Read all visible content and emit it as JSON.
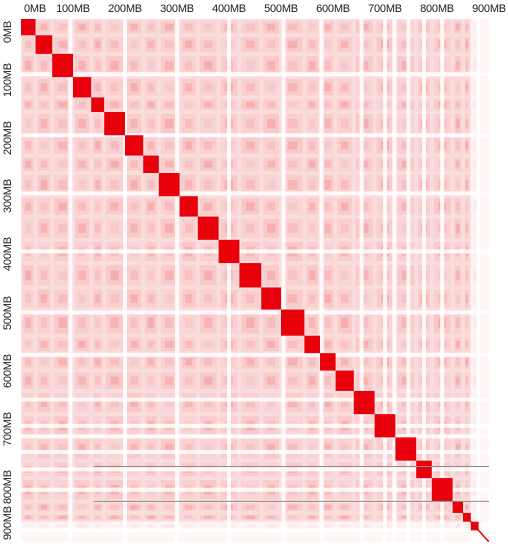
{
  "viewer": {
    "x_ticks": [
      "0MB",
      "100MB",
      "200MB",
      "300MB",
      "400MB",
      "500MB",
      "600MB",
      "700MB",
      "800MB",
      "900MB"
    ],
    "y_ticks": [
      "0MB",
      "100MB",
      "200MB",
      "300MB",
      "400MB",
      "500MB",
      "600MB",
      "700MB",
      "800MB",
      "900MB"
    ],
    "colors": {
      "background": "#ffffff",
      "base": "#fbdcdc",
      "contact": "#f4a6a6",
      "domain": "#e8000a",
      "gap": "#ffffff",
      "line": "#8c8c8c"
    }
  },
  "chart_data": {
    "type": "heatmap",
    "x_range_mb": [
      0,
      900
    ],
    "y_range_mb": [
      0,
      900
    ],
    "blocks_mb": [
      [
        0,
        28
      ],
      [
        28,
        60
      ],
      [
        60,
        100
      ],
      [
        100,
        135
      ],
      [
        135,
        160
      ],
      [
        160,
        200
      ],
      [
        200,
        235
      ],
      [
        235,
        265
      ],
      [
        265,
        305
      ],
      [
        305,
        340
      ],
      [
        340,
        380
      ],
      [
        380,
        420
      ],
      [
        420,
        462
      ],
      [
        462,
        500
      ],
      [
        500,
        545
      ],
      [
        545,
        575
      ],
      [
        575,
        605
      ],
      [
        605,
        640
      ],
      [
        640,
        680
      ],
      [
        680,
        720
      ],
      [
        720,
        760
      ],
      [
        760,
        790
      ],
      [
        790,
        830
      ],
      [
        830,
        850
      ],
      [
        850,
        865
      ],
      [
        865,
        880
      ]
    ],
    "gaps_mb": [
      95,
      200,
      300,
      400,
      505,
      578,
      655,
      700,
      718,
      745,
      775,
      810,
      880
    ],
    "gap_lines_mb": [
      150,
      700,
      860
    ],
    "horizontal_lines_mb": [
      770,
      830
    ]
  }
}
